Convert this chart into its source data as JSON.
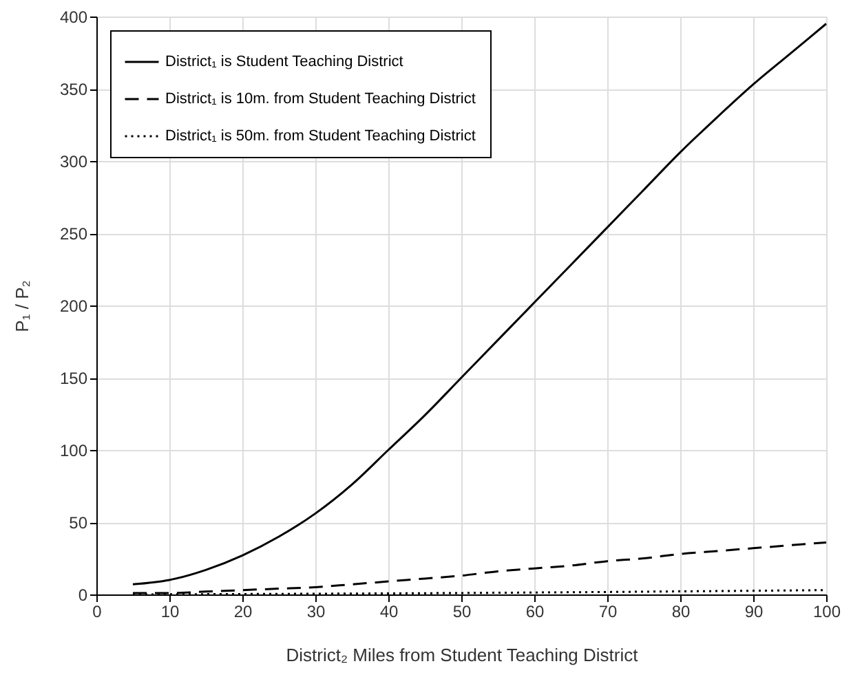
{
  "chart_data": {
    "type": "line",
    "xlabel": "District₂ Miles from Student Teaching District",
    "ylabel": "P₁ / P₂",
    "xlim": [
      0,
      100
    ],
    "xticks": [
      0,
      10,
      20,
      30,
      40,
      50,
      60,
      70,
      80,
      90,
      100
    ],
    "ylim": [
      0,
      400
    ],
    "yticks": [
      0,
      50,
      100,
      150,
      200,
      250,
      300,
      350,
      400
    ],
    "grid": true,
    "legend": "top left",
    "x": [
      5,
      10,
      15,
      20,
      25,
      30,
      35,
      40,
      45,
      50,
      55,
      60,
      65,
      70,
      75,
      80,
      85,
      90,
      95,
      100
    ],
    "series": [
      {
        "name": "District₁ is Student Teaching District",
        "color": "#000000",
        "line_style": "solid",
        "values": [
          7,
          10,
          17,
          27,
          40,
          56,
          76,
          100,
          124,
          150,
          176,
          202,
          228,
          254,
          280,
          306,
          330,
          353,
          374,
          395
        ]
      },
      {
        "name": "District₁ is 10m. from Student Teaching District",
        "color": "#000000",
        "line_style": "dashed",
        "values": [
          1,
          1,
          2,
          3,
          4,
          5,
          7,
          9,
          11,
          13,
          16,
          18,
          20,
          23,
          25,
          28,
          30,
          32,
          34,
          36
        ]
      },
      {
        "name": "District₁ is 50m. from Student Teaching District",
        "color": "#000000",
        "line_style": "dotted",
        "x": [
          5,
          50,
          100
        ],
        "values": [
          0,
          1,
          3
        ]
      }
    ],
    "marker": "none"
  }
}
